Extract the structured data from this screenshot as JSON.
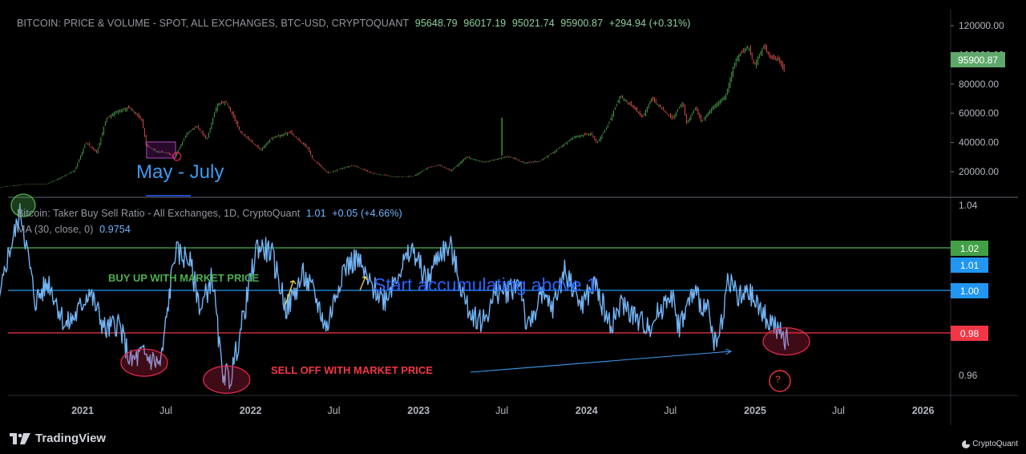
{
  "chart_data": [
    {
      "type": "line",
      "title": "BITCOIN: PRICE & VOLUME - SPOT, ALL EXCHANGES, BTC-USD, CRYPTOQUANT",
      "ohlc": {
        "open": "95648.79",
        "high": "96017.19",
        "low": "95021.74",
        "close": "95900.87",
        "change": "+294.94 (+0.31%)"
      },
      "last_price_label": "95900.87",
      "yticks": [
        "120000.00",
        "100000.00",
        "80000.00",
        "60000.00",
        "40000.00",
        "20000.00"
      ],
      "ylim": [
        5000,
        125000
      ],
      "series": [
        {
          "x": [
            "2020-05-01",
            "2020-07-01",
            "2020-09-01",
            "2020-10-15",
            "2020-11-15",
            "2020-12-15",
            "2021-01-08",
            "2021-02-01",
            "2021-02-21",
            "2021-03-13",
            "2021-04-14",
            "2021-05-10",
            "2021-05-19",
            "2021-06-10",
            "2021-07-01",
            "2021-07-20",
            "2021-08-15",
            "2021-09-06",
            "2021-09-28",
            "2021-10-20",
            "2021-11-09",
            "2021-12-10",
            "2022-01-23",
            "2022-02-15",
            "2022-03-28",
            "2022-05-05",
            "2022-05-15",
            "2022-06-18",
            "2022-07-30",
            "2022-08-15",
            "2022-09-20",
            "2022-11-10",
            "2022-12-20",
            "2023-01-20",
            "2023-02-16",
            "2023-03-12",
            "2023-04-14",
            "2023-05-25",
            "2023-07-13",
            "2023-07-22",
            "2023-08-18",
            "2023-09-20",
            "2023-10-24",
            "2023-12-05",
            "2024-01-11",
            "2024-01-23",
            "2024-02-15",
            "2024-03-14",
            "2024-04-15",
            "2024-05-01",
            "2024-05-21",
            "2024-06-20",
            "2024-07-05",
            "2024-07-28",
            "2024-08-05",
            "2024-08-25",
            "2024-09-06",
            "2024-09-30",
            "2024-10-29",
            "2024-11-13",
            "2024-11-22",
            "2024-12-17",
            "2024-12-30",
            "2025-01-20",
            "2025-02-03",
            "2025-02-20",
            "2025-03-05"
          ],
          "y": [
            8800,
            9200,
            11500,
            11500,
            16000,
            21000,
            40000,
            33000,
            56000,
            61000,
            64000,
            55000,
            38000,
            34000,
            33000,
            30000,
            46000,
            51000,
            42000,
            66000,
            68000,
            47000,
            35000,
            43000,
            47000,
            36000,
            29000,
            19000,
            23500,
            24000,
            19000,
            16500,
            16800,
            22500,
            24500,
            20500,
            30000,
            26500,
            30500,
            29800,
            26000,
            27000,
            34000,
            44000,
            46000,
            39500,
            51000,
            72000,
            63000,
            57000,
            70000,
            61000,
            56000,
            68000,
            53000,
            64000,
            54000,
            64000,
            72000,
            90000,
            98000,
            106000,
            93000,
            106000,
            98000,
            97000,
            89000
          ]
        }
      ]
    },
    {
      "type": "line",
      "title": "Bitcoin: Taker Buy Sell Ratio - All Exchanges, 1D, CryptoQuant",
      "value": "1.01",
      "change": "+0.05 (+4.66%)",
      "ma_label": "MA (30, close, 0)",
      "ma_value": "0.9754",
      "yticks": [
        "1.04",
        "0.96"
      ],
      "ylim": [
        0.951,
        1.041
      ],
      "hlines": [
        {
          "value": 1.02,
          "label": "1.02",
          "color": "#4caf50"
        },
        {
          "value": 1.0,
          "label": "1.00",
          "color": "#2196f3"
        },
        {
          "value": 0.98,
          "label": "0.98",
          "color": "#f23645"
        }
      ],
      "current_label": "1.01",
      "series": [
        {
          "x": [
            "2020-05-01",
            "2020-05-25",
            "2020-06-10",
            "2020-07-20",
            "2020-08-20",
            "2020-09-20",
            "2020-10-20",
            "2020-11-25",
            "2020-12-20",
            "2021-01-15",
            "2021-02-20",
            "2021-03-20",
            "2021-04-15",
            "2021-05-10",
            "2021-06-20",
            "2021-07-20",
            "2021-08-20",
            "2021-09-15",
            "2021-10-10",
            "2021-10-30",
            "2021-11-18",
            "2021-12-15",
            "2022-01-15",
            "2022-02-15",
            "2022-03-20",
            "2022-04-25",
            "2022-05-20",
            "2022-06-15",
            "2022-07-20",
            "2022-08-20",
            "2022-09-15",
            "2022-10-20",
            "2022-11-15",
            "2022-12-20",
            "2023-01-20",
            "2023-02-15",
            "2023-03-12",
            "2023-04-15",
            "2023-05-20",
            "2023-06-20",
            "2023-07-15",
            "2023-08-10",
            "2023-08-25",
            "2023-09-20",
            "2023-10-20",
            "2023-11-15",
            "2023-12-20",
            "2024-01-20",
            "2024-02-20",
            "2024-03-20",
            "2024-04-25",
            "2024-05-20",
            "2024-06-15",
            "2024-07-01",
            "2024-07-20",
            "2024-08-20",
            "2024-09-20",
            "2024-10-10",
            "2024-11-05",
            "2024-11-25",
            "2024-12-20",
            "2025-01-15",
            "2025-02-05",
            "2025-02-20",
            "2025-03-05",
            "2025-03-15"
          ],
          "y": [
            1.006,
            0.972,
            0.961,
            1.014,
            1.037,
            0.995,
            1.004,
            0.983,
            0.989,
            1.0,
            0.981,
            0.985,
            0.966,
            0.97,
            0.965,
            1.018,
            1.015,
            0.991,
            1.007,
            0.963,
            0.958,
            0.986,
            1.021,
            1.018,
            0.991,
            1.007,
            0.998,
            0.982,
            1.01,
            1.015,
            1.003,
            0.996,
            1.008,
            1.019,
            1.004,
            1.018,
            1.02,
            0.992,
            0.985,
            0.999,
            1.0,
            1.005,
            0.98,
            0.997,
            0.992,
            1.01,
            0.993,
            1.003,
            0.984,
            0.994,
            0.985,
            0.984,
            0.993,
            1.0,
            0.983,
            0.999,
            0.99,
            0.972,
            1.007,
            0.996,
            0.998,
            0.99,
            0.985,
            0.981,
            0.976,
            0.978
          ]
        }
      ]
    }
  ],
  "xaxis": {
    "labels": [
      "2021",
      "Jul",
      "2022",
      "Jul",
      "2023",
      "Jul",
      "2024",
      "Jul",
      "2025",
      "Jul",
      "2026"
    ]
  },
  "annotations": {
    "may_july": "May - July",
    "buy_up": "BUY UP WITH MARKET PRICE",
    "accumulate": "Start accumulating above 1",
    "sell_off": "SELL OFF WITH MARKET PRICE",
    "question": "?"
  },
  "branding": {
    "tradingview": "TradingView",
    "cryptoquant": "CryptoQuant"
  },
  "colors": {
    "background": "#000000",
    "ratio_line": "#72b4f5",
    "up_candle": "#4caf50",
    "down_candle": "#ef5350",
    "ellipse": "#e0294f",
    "axis_text": "#b2b5be"
  }
}
